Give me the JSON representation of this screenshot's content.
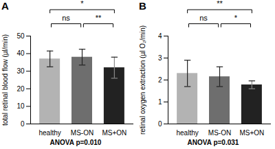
{
  "chart_data": [
    {
      "type": "bar",
      "title": "A",
      "y_label": "total retinal blood flow (µl/min)",
      "caption": "ANOVA p=0.010",
      "categories": [
        "healthy",
        "MS-ON",
        "MS+ON"
      ],
      "values": [
        37,
        38,
        32
      ],
      "errors": [
        4.5,
        4.5,
        6
      ],
      "colors": [
        "#b3b3b3",
        "#6e6e6e",
        "#222222"
      ],
      "ylim": [
        0,
        50
      ],
      "yticks": [
        0,
        10,
        20,
        30,
        40,
        50
      ],
      "comparisons": [
        {
          "from": "healthy",
          "to": "MS-ON",
          "label": "ns"
        },
        {
          "from": "healthy",
          "to": "MS+ON",
          "label": "*"
        },
        {
          "from": "MS-ON",
          "to": "MS+ON",
          "label": "**"
        }
      ]
    },
    {
      "type": "bar",
      "title": "B",
      "y_label": "retinal oxygen extraction (µl O₂/min)",
      "caption": "ANOVA p=0.031",
      "categories": [
        "healthy",
        "MS-ON",
        "MS+ON"
      ],
      "values": [
        2.3,
        2.15,
        1.78
      ],
      "errors": [
        0.6,
        0.45,
        0.18
      ],
      "colors": [
        "#b3b3b3",
        "#6e6e6e",
        "#222222"
      ],
      "ylim": [
        0,
        4
      ],
      "yticks": [
        0,
        1,
        2,
        3,
        4
      ],
      "comparisons": [
        {
          "from": "healthy",
          "to": "MS-ON",
          "label": "ns"
        },
        {
          "from": "healthy",
          "to": "MS+ON",
          "label": "**"
        },
        {
          "from": "MS-ON",
          "to": "MS+ON",
          "label": "*"
        }
      ]
    }
  ]
}
